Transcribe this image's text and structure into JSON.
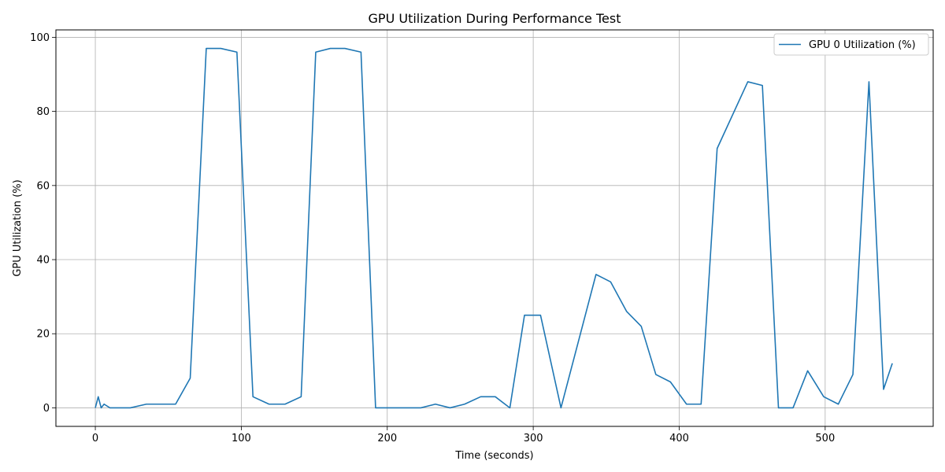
{
  "chart_data": {
    "type": "line",
    "title": "GPU Utilization During Performance Test",
    "xlabel": "Time (seconds)",
    "ylabel": "GPU Utilization (%)",
    "xlim": [
      -27,
      574
    ],
    "ylim": [
      -5,
      102
    ],
    "xticks": [
      0,
      100,
      200,
      300,
      400,
      500
    ],
    "yticks": [
      0,
      20,
      40,
      60,
      80,
      100
    ],
    "grid": true,
    "legend_position": "top-right",
    "series": [
      {
        "name": "GPU 0 Utilization (%)",
        "color": "#1f77b4",
        "x": [
          0,
          2,
          4,
          6,
          10,
          14,
          24,
          35,
          45,
          55,
          65,
          76,
          86,
          97,
          108,
          119,
          130,
          141,
          151,
          161,
          171,
          182,
          192,
          202,
          212,
          223,
          233,
          243,
          253,
          264,
          274,
          284,
          294,
          305,
          319,
          343,
          353,
          364,
          374,
          384,
          394,
          405,
          415,
          426,
          447,
          457,
          468,
          478,
          488,
          499,
          509,
          519,
          530,
          540,
          546
        ],
        "y": [
          0,
          3,
          0,
          1,
          0,
          0,
          0,
          1,
          1,
          1,
          8,
          97,
          97,
          96,
          3,
          1,
          1,
          3,
          96,
          97,
          97,
          96,
          0,
          0,
          0,
          0,
          1,
          0,
          1,
          3,
          3,
          0,
          25,
          25,
          0,
          36,
          34,
          26,
          22,
          9,
          7,
          1,
          1,
          70,
          88,
          87,
          0,
          0,
          10,
          3,
          1,
          9,
          88,
          5,
          12
        ]
      }
    ]
  }
}
